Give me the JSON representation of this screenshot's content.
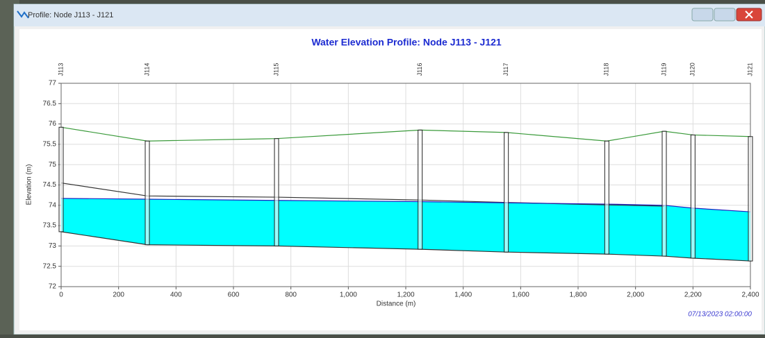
{
  "window": {
    "title": "Profile: Node J113 - J121"
  },
  "chart_data": {
    "type": "profile",
    "title": "Water Elevation Profile: Node J113 - J121",
    "x_label": "Distance (m)",
    "y_label": "Elevation (m)",
    "timestamp": "07/13/2023 02:00:00",
    "categories": [
      "J113",
      "J114",
      "J115",
      "J116",
      "J117",
      "J118",
      "J119",
      "J120",
      "J121"
    ],
    "x": [
      0,
      300,
      750,
      1250,
      1550,
      1900,
      2100,
      2200,
      2400
    ],
    "series": [
      {
        "color": "#3a9a3a",
        "values": [
          75.92,
          75.58,
          75.64,
          75.85,
          75.79,
          75.58,
          75.82,
          75.73,
          75.69
        ]
      },
      {
        "color": "#333333",
        "values": [
          74.55,
          74.23,
          74.2,
          74.13,
          74.07,
          74.01,
          73.98,
          null,
          null
        ]
      },
      {
        "color": "#2020c0",
        "fill": "#00ffff",
        "values": [
          74.17,
          74.15,
          74.12,
          74.09,
          74.06,
          74.03,
          74.0,
          73.93,
          73.84
        ]
      },
      {
        "color": "#333333",
        "values": [
          73.35,
          73.03,
          73.0,
          72.92,
          72.85,
          72.8,
          72.75,
          72.7,
          72.63
        ]
      }
    ],
    "xlim": [
      0,
      2400
    ],
    "xticks": [
      0,
      200,
      400,
      600,
      800,
      {
        "value": 1000,
        "label": "1,000"
      },
      {
        "value": 1200,
        "label": "1,200"
      },
      {
        "value": 1400,
        "label": "1,400"
      },
      {
        "value": 1600,
        "label": "1,600"
      },
      {
        "value": 1800,
        "label": "1,800"
      },
      {
        "value": 2000,
        "label": "2,000"
      },
      {
        "value": 2200,
        "label": "2,200"
      },
      {
        "value": 2400,
        "label": "2,400"
      }
    ],
    "ylim": [
      72,
      77
    ],
    "yticks": [
      72,
      72.5,
      73,
      73.5,
      74,
      74.5,
      75,
      75.5,
      76,
      76.5,
      77
    ],
    "grid": true
  }
}
